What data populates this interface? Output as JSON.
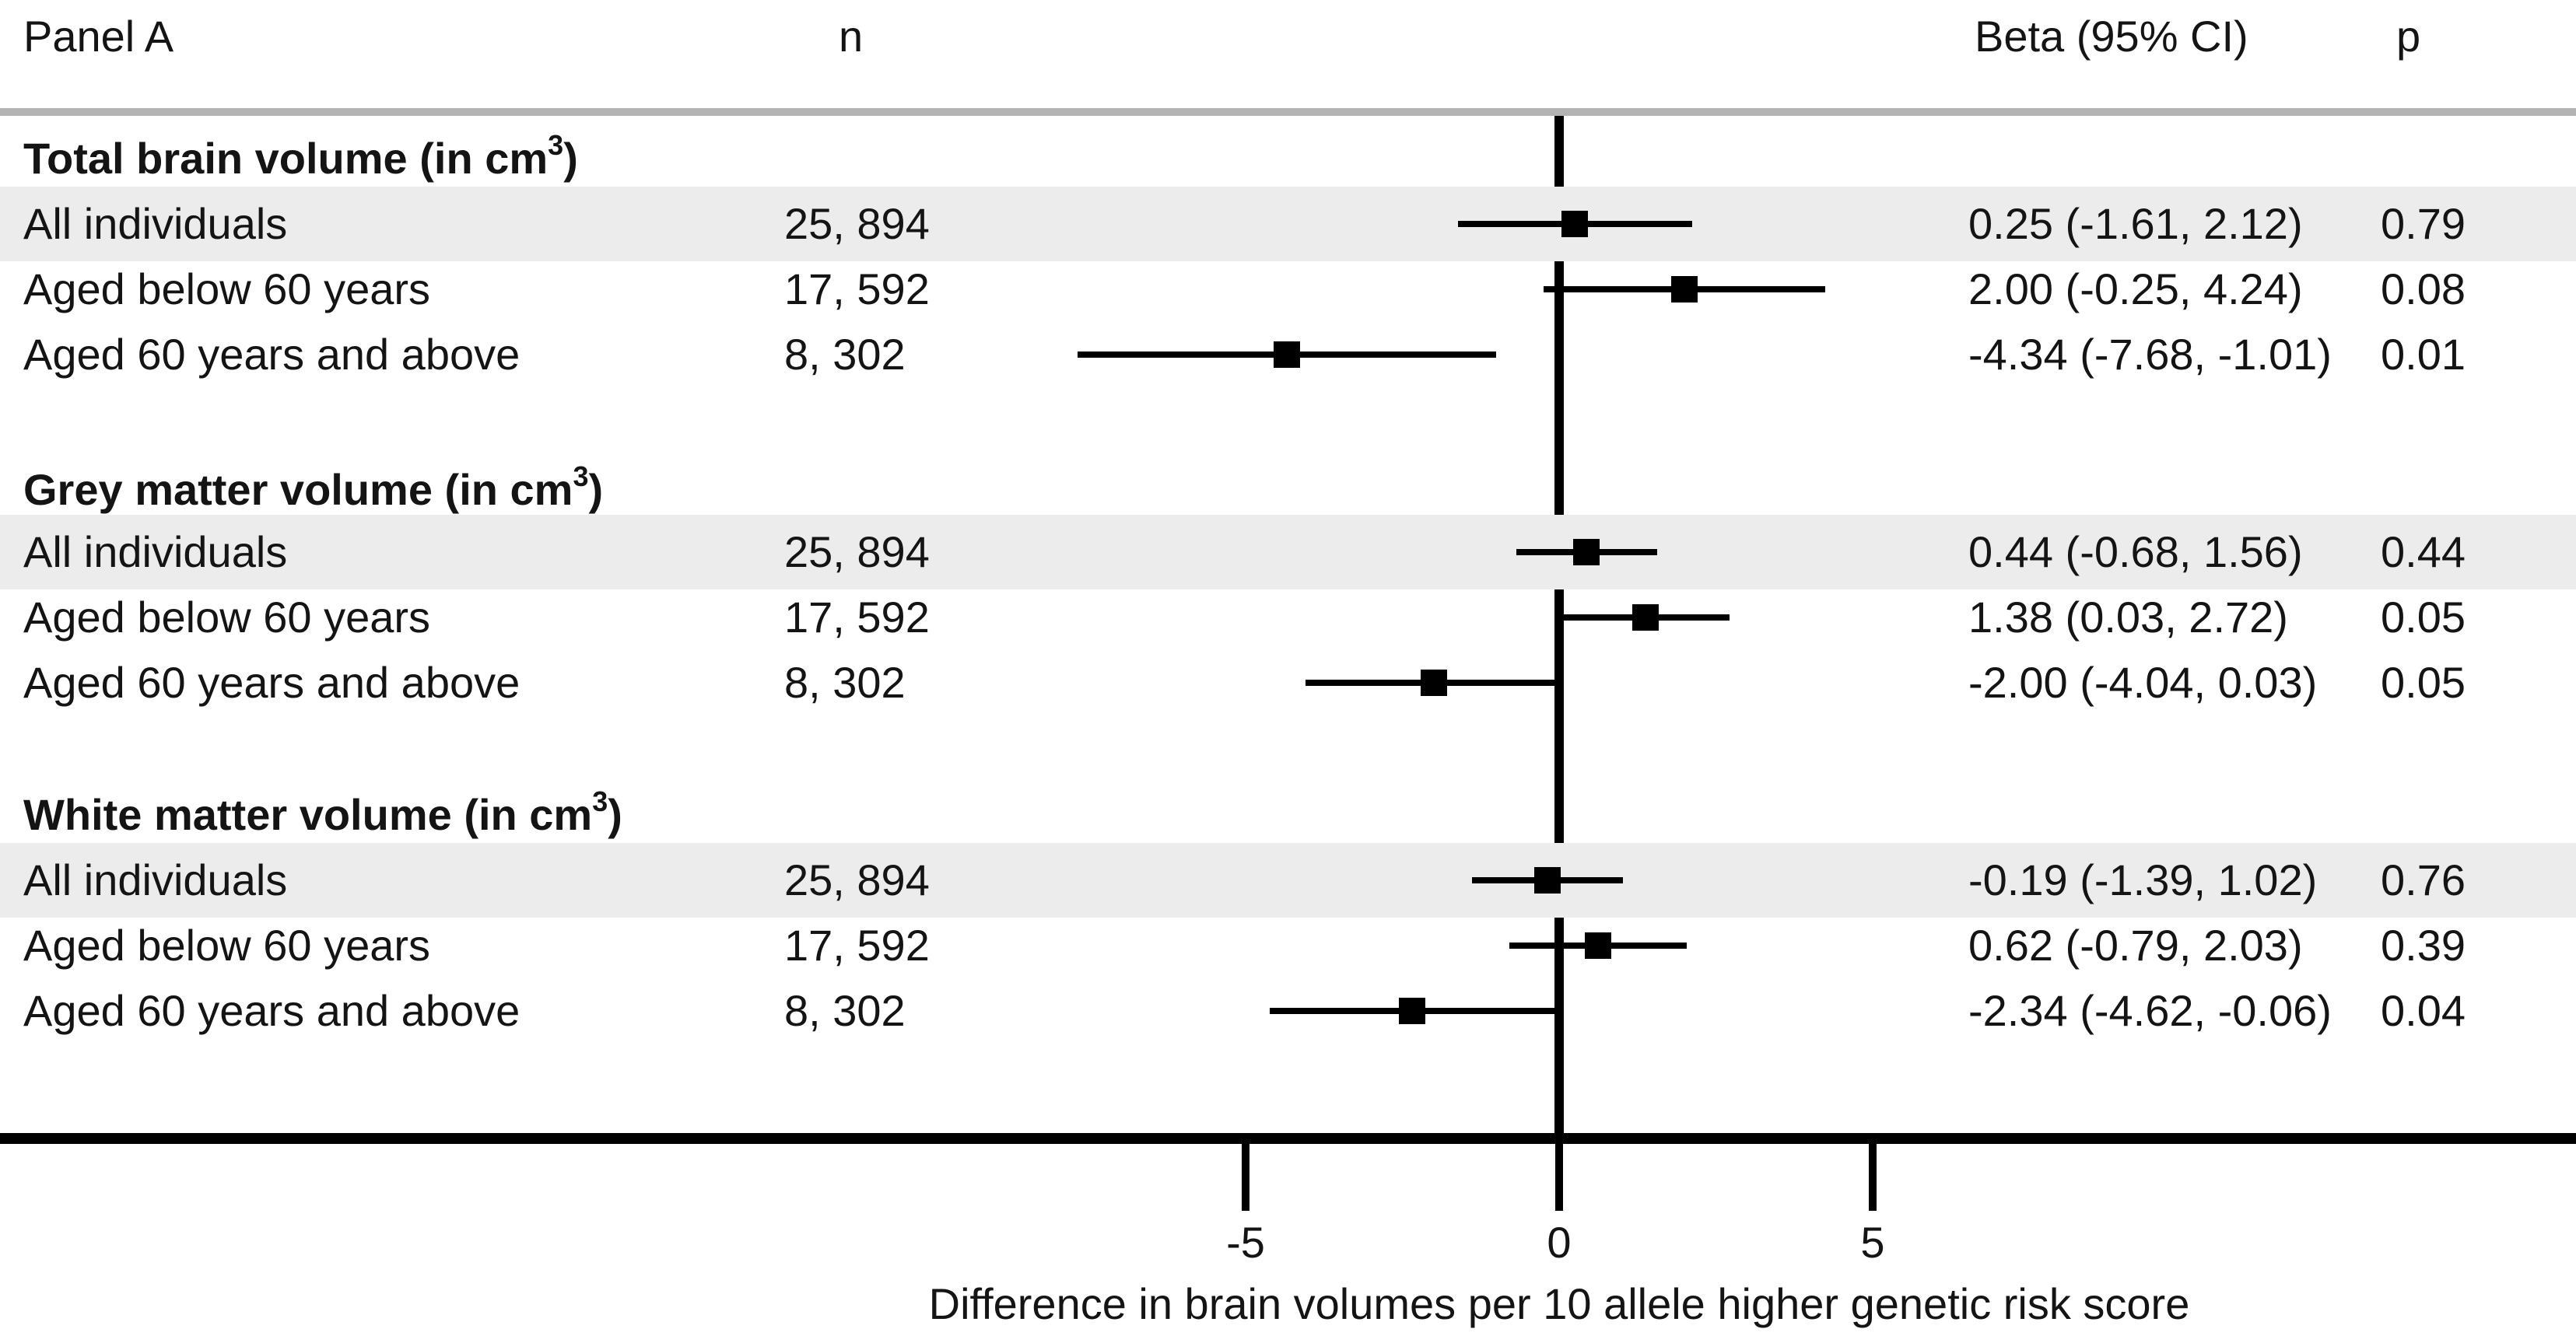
{
  "header": {
    "panel": "Panel A",
    "n": "n",
    "beta": "Beta (95% CI)",
    "p": "p"
  },
  "axis": {
    "tick_labels": [
      "-5",
      "0",
      "5"
    ],
    "tick_values": [
      -5,
      0,
      5
    ],
    "title": "Difference in brain volumes per 10 allele higher genetic risk score"
  },
  "colors": {
    "band": "#ececec",
    "top_rule": "#b3b3b3",
    "ink": "#000000"
  },
  "table": {
    "groups": [
      {
        "label": "Total brain volume (in cm",
        "sup": "3",
        "close": ")",
        "rows": [
          {
            "label": "All individuals",
            "n": "25, 894",
            "beta_ci": "0.25 (-1.61, 2.12)",
            "p": "0.79",
            "beta": 0.25,
            "lo": -1.61,
            "hi": 2.12,
            "shaded": true
          },
          {
            "label": "Aged below 60 years",
            "n": "17, 592",
            "beta_ci": "2.00 (-0.25, 4.24)",
            "p": "0.08",
            "beta": 2.0,
            "lo": -0.25,
            "hi": 4.24,
            "shaded": false
          },
          {
            "label": "Aged 60 years and above",
            "n": "8, 302",
            "beta_ci": "-4.34 (-7.68, -1.01)",
            "p": "0.01",
            "beta": -4.34,
            "lo": -7.68,
            "hi": -1.01,
            "shaded": false
          }
        ]
      },
      {
        "label": "Grey matter volume (in cm",
        "sup": "3",
        "close": ")",
        "rows": [
          {
            "label": "All individuals",
            "n": "25, 894",
            "beta_ci": "0.44 (-0.68, 1.56)",
            "p": "0.44",
            "beta": 0.44,
            "lo": -0.68,
            "hi": 1.56,
            "shaded": true
          },
          {
            "label": "Aged below 60 years",
            "n": "17, 592",
            "beta_ci": "1.38 (0.03, 2.72)",
            "p": "0.05",
            "beta": 1.38,
            "lo": 0.03,
            "hi": 2.72,
            "shaded": false
          },
          {
            "label": "Aged 60 years and above",
            "n": "8, 302",
            "beta_ci": "-2.00 (-4.04, 0.03)",
            "p": "0.05",
            "beta": -2.0,
            "lo": -4.04,
            "hi": 0.03,
            "shaded": false
          }
        ]
      },
      {
        "label": "White matter volume (in cm",
        "sup": "3",
        "close": ")",
        "rows": [
          {
            "label": "All individuals",
            "n": "25, 894",
            "beta_ci": "-0.19 (-1.39, 1.02)",
            "p": "0.76",
            "beta": -0.19,
            "lo": -1.39,
            "hi": 1.02,
            "shaded": true
          },
          {
            "label": "Aged below 60 years",
            "n": "17, 592",
            "beta_ci": "0.62 (-0.79, 2.03)",
            "p": "0.39",
            "beta": 0.62,
            "lo": -0.79,
            "hi": 2.03,
            "shaded": false
          },
          {
            "label": "Aged 60 years and above",
            "n": "8, 302",
            "beta_ci": "-2.34 (-4.62, -0.06)",
            "p": "0.04",
            "beta": -2.34,
            "lo": -4.62,
            "hi": -0.06,
            "shaded": false
          }
        ]
      }
    ]
  },
  "chart_data": {
    "type": "scatter",
    "subtype": "forest-plot",
    "title": "Panel A",
    "xlabel": "Difference in brain volumes per 10 allele higher genetic risk score",
    "xticks": [
      -5,
      0,
      5
    ],
    "xlim": [
      -10,
      8
    ],
    "reference_line_x": 0,
    "marker": "filled-square",
    "grid": false,
    "groups": [
      {
        "name": "Total brain volume (in cm3)",
        "rows": [
          {
            "label": "All individuals",
            "n": 25894,
            "beta": 0.25,
            "ci_low": -1.61,
            "ci_high": 2.12,
            "p": 0.79
          },
          {
            "label": "Aged below 60 years",
            "n": 17592,
            "beta": 2.0,
            "ci_low": -0.25,
            "ci_high": 4.24,
            "p": 0.08
          },
          {
            "label": "Aged 60 years and above",
            "n": 8302,
            "beta": -4.34,
            "ci_low": -7.68,
            "ci_high": -1.01,
            "p": 0.01
          }
        ]
      },
      {
        "name": "Grey matter volume (in cm3)",
        "rows": [
          {
            "label": "All individuals",
            "n": 25894,
            "beta": 0.44,
            "ci_low": -0.68,
            "ci_high": 1.56,
            "p": 0.44
          },
          {
            "label": "Aged below 60 years",
            "n": 17592,
            "beta": 1.38,
            "ci_low": 0.03,
            "ci_high": 2.72,
            "p": 0.05
          },
          {
            "label": "Aged 60 years and above",
            "n": 8302,
            "beta": -2.0,
            "ci_low": -4.04,
            "ci_high": 0.03,
            "p": 0.05
          }
        ]
      },
      {
        "name": "White matter volume (in cm3)",
        "rows": [
          {
            "label": "All individuals",
            "n": 25894,
            "beta": -0.19,
            "ci_low": -1.39,
            "ci_high": 1.02,
            "p": 0.76
          },
          {
            "label": "Aged below 60 years",
            "n": 17592,
            "beta": 0.62,
            "ci_low": -0.79,
            "ci_high": 2.03,
            "p": 0.39
          },
          {
            "label": "Aged 60 years and above",
            "n": 8302,
            "beta": -2.34,
            "ci_low": -4.62,
            "ci_high": -0.06,
            "p": 0.04
          }
        ]
      }
    ]
  }
}
